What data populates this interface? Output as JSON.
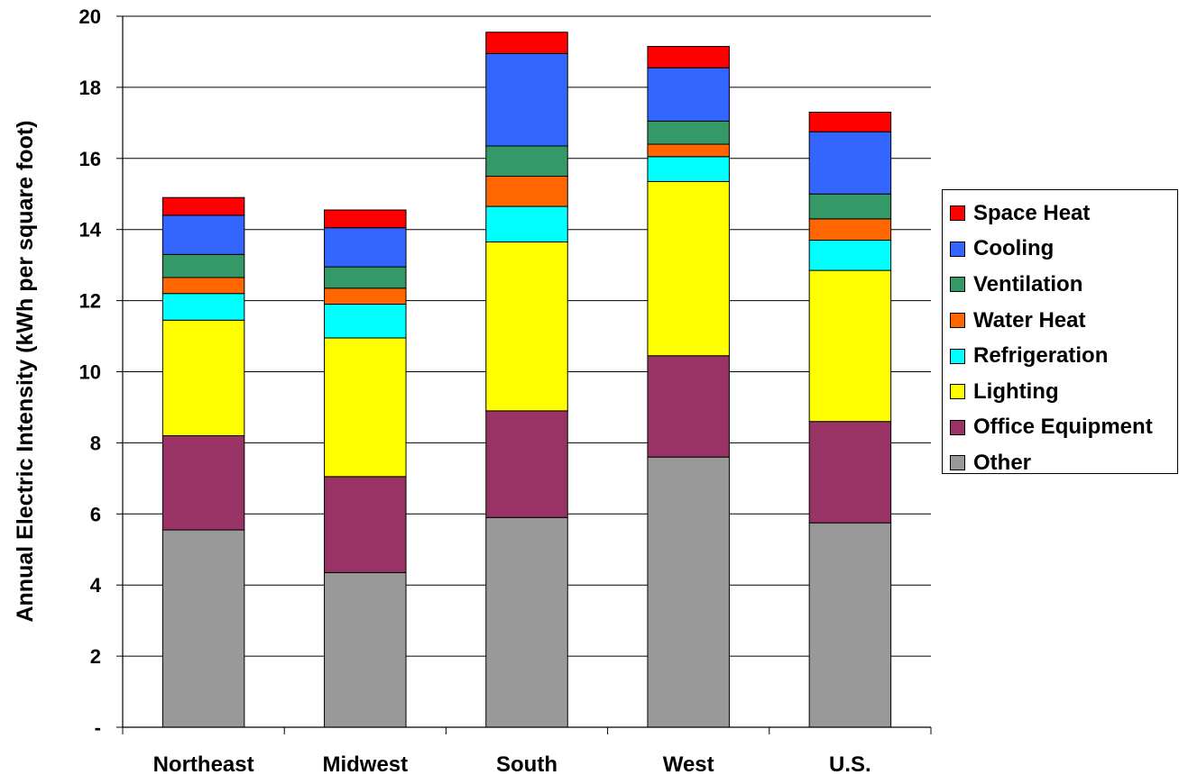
{
  "chart_data": {
    "type": "bar",
    "stacked": true,
    "ylabel": "Annual Electric Intensity (kWh per square foot)",
    "xlabel": "",
    "ylim": [
      0,
      20
    ],
    "y_ticks": [
      {
        "value": 0,
        "label": "-"
      },
      {
        "value": 2,
        "label": "2"
      },
      {
        "value": 4,
        "label": "4"
      },
      {
        "value": 6,
        "label": "6"
      },
      {
        "value": 8,
        "label": "8"
      },
      {
        "value": 10,
        "label": "10"
      },
      {
        "value": 12,
        "label": "12"
      },
      {
        "value": 14,
        "label": "14"
      },
      {
        "value": 16,
        "label": "16"
      },
      {
        "value": 18,
        "label": "18"
      },
      {
        "value": 20,
        "label": "20"
      }
    ],
    "grid": true,
    "legend_position": "right",
    "categories": [
      "Northeast",
      "Midwest",
      "South",
      "West",
      "U.S."
    ],
    "series": [
      {
        "name": "Other",
        "color": "#999999",
        "values": [
          5.55,
          4.35,
          5.9,
          7.6,
          5.75
        ]
      },
      {
        "name": "Office Equipment",
        "color": "#993366",
        "values": [
          2.65,
          2.7,
          3.0,
          2.85,
          2.85
        ]
      },
      {
        "name": "Lighting",
        "color": "#ffff00",
        "values": [
          3.25,
          3.9,
          4.75,
          4.9,
          4.25
        ]
      },
      {
        "name": "Refrigeration",
        "color": "#00ffff",
        "values": [
          0.75,
          0.95,
          1.0,
          0.7,
          0.85
        ]
      },
      {
        "name": "Water Heat",
        "color": "#ff6600",
        "values": [
          0.45,
          0.45,
          0.85,
          0.35,
          0.6
        ]
      },
      {
        "name": "Ventilation",
        "color": "#339966",
        "values": [
          0.65,
          0.6,
          0.85,
          0.65,
          0.7
        ]
      },
      {
        "name": "Cooling",
        "color": "#3366ff",
        "values": [
          1.1,
          1.1,
          2.6,
          1.5,
          1.75
        ]
      },
      {
        "name": "Space Heat",
        "color": "#ff0000",
        "values": [
          0.5,
          0.5,
          0.6,
          0.6,
          0.55
        ]
      }
    ],
    "legend_order": [
      "Space Heat",
      "Cooling",
      "Ventilation",
      "Water Heat",
      "Refrigeration",
      "Lighting",
      "Office Equipment",
      "Other"
    ]
  }
}
